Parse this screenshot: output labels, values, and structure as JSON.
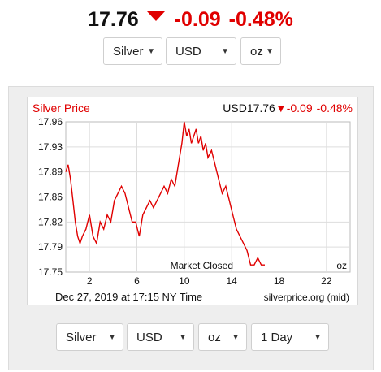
{
  "header": {
    "price": "17.76",
    "change": "-0.09",
    "change_pct": "-0.48%",
    "down_color": "#e00000"
  },
  "top_selectors": {
    "metal": "Silver",
    "currency": "USD",
    "unit": "oz"
  },
  "chart": {
    "title": "Silver Price",
    "currency_label": "USD",
    "price": "17.76",
    "change": "-0.09",
    "change_pct": "-0.48%",
    "status_annotation": "Market Closed",
    "unit_annotation": "oz",
    "footer_date": "Dec 27, 2019 at 17:15 NY Time",
    "footer_source": "silverprice.org (mid)"
  },
  "chart_data": {
    "type": "line",
    "y_ticks": [
      "17.96",
      "17.93",
      "17.89",
      "17.86",
      "17.82",
      "17.79",
      "17.75"
    ],
    "x_ticks": [
      "2",
      "6",
      "10",
      "14",
      "18",
      "22"
    ],
    "ylim": [
      17.75,
      17.96
    ],
    "xlim": [
      0,
      24
    ],
    "grid": true,
    "line_color": "#e00000",
    "series": [
      {
        "x": [
          0.0,
          0.2,
          0.4,
          0.6,
          0.8,
          1.0,
          1.2,
          1.4,
          1.7,
          2.0,
          2.3,
          2.6,
          2.9,
          3.2,
          3.5,
          3.8,
          4.1,
          4.4,
          4.7,
          5.0,
          5.3,
          5.6,
          5.9,
          6.2,
          6.5,
          6.8,
          7.1,
          7.4,
          7.7,
          8.0,
          8.3,
          8.6,
          8.9,
          9.2,
          9.5,
          9.8,
          10.0,
          10.2,
          10.4,
          10.6,
          10.8,
          11.0,
          11.2,
          11.4,
          11.6,
          11.8,
          12.0,
          12.3,
          12.6,
          12.9,
          13.2,
          13.5,
          13.8,
          14.1,
          14.4,
          14.7,
          15.0,
          15.3,
          15.6,
          15.9,
          16.2,
          16.5,
          16.8
        ],
        "y": [
          17.89,
          17.9,
          17.88,
          17.85,
          17.82,
          17.8,
          17.79,
          17.8,
          17.81,
          17.83,
          17.8,
          17.79,
          17.82,
          17.81,
          17.83,
          17.82,
          17.85,
          17.86,
          17.87,
          17.86,
          17.84,
          17.82,
          17.82,
          17.8,
          17.83,
          17.84,
          17.85,
          17.84,
          17.85,
          17.86,
          17.87,
          17.86,
          17.88,
          17.87,
          17.9,
          17.93,
          17.96,
          17.94,
          17.95,
          17.93,
          17.94,
          17.95,
          17.93,
          17.94,
          17.92,
          17.93,
          17.91,
          17.92,
          17.9,
          17.88,
          17.86,
          17.87,
          17.85,
          17.83,
          17.81,
          17.8,
          17.79,
          17.78,
          17.76,
          17.76,
          17.77,
          17.76,
          17.76
        ]
      }
    ]
  },
  "bottom_selectors": {
    "metal": "Silver",
    "currency": "USD",
    "unit": "oz",
    "range": "1 Day"
  }
}
